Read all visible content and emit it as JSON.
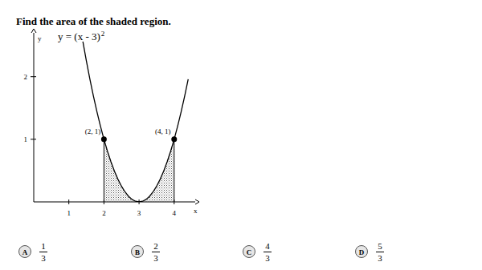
{
  "question": "Find the area of the shaded region.",
  "chart_data": {
    "type": "line",
    "subtitle": {
      "base": "y = (x - 3)",
      "exponent": "2"
    },
    "x_label": "x",
    "y_label": "y",
    "x": [
      1.4,
      1.5,
      1.6,
      1.7,
      1.8,
      1.9,
      2.0,
      2.1,
      2.2,
      2.3,
      2.4,
      2.5,
      2.6,
      2.7,
      2.8,
      2.9,
      3.0,
      3.1,
      3.2,
      3.3,
      3.4,
      3.5,
      3.6,
      3.7,
      3.8,
      3.9,
      4.0,
      4.1,
      4.2,
      4.3,
      4.4
    ],
    "values": [
      2.56,
      2.25,
      1.96,
      1.69,
      1.44,
      1.21,
      1,
      0.81,
      0.64,
      0.49,
      0.36,
      0.25,
      0.16,
      0.09,
      0.04,
      0.01,
      0,
      0.01,
      0.04,
      0.09,
      0.16,
      0.25,
      0.36,
      0.49,
      0.64,
      0.81,
      1,
      1.21,
      1.44,
      1.69,
      1.96
    ],
    "color": "#000000",
    "shaded_interval": [
      2,
      4
    ],
    "annotations": [
      {
        "x": 2,
        "y": 1,
        "label": "(2, 1)"
      },
      {
        "x": 4,
        "y": 1,
        "label": "(4, 1)"
      }
    ],
    "xlim": [
      0,
      4.6
    ],
    "ylim": [
      0,
      2.7
    ],
    "xticks": [
      1,
      2,
      3,
      4
    ],
    "yticks": [
      1,
      2
    ],
    "grid": false
  },
  "choices": [
    {
      "letter": "A",
      "numerator": "1",
      "denominator": "3"
    },
    {
      "letter": "B",
      "numerator": "2",
      "denominator": "3"
    },
    {
      "letter": "C",
      "numerator": "4",
      "denominator": "3"
    },
    {
      "letter": "D",
      "numerator": "5",
      "denominator": "3"
    }
  ]
}
